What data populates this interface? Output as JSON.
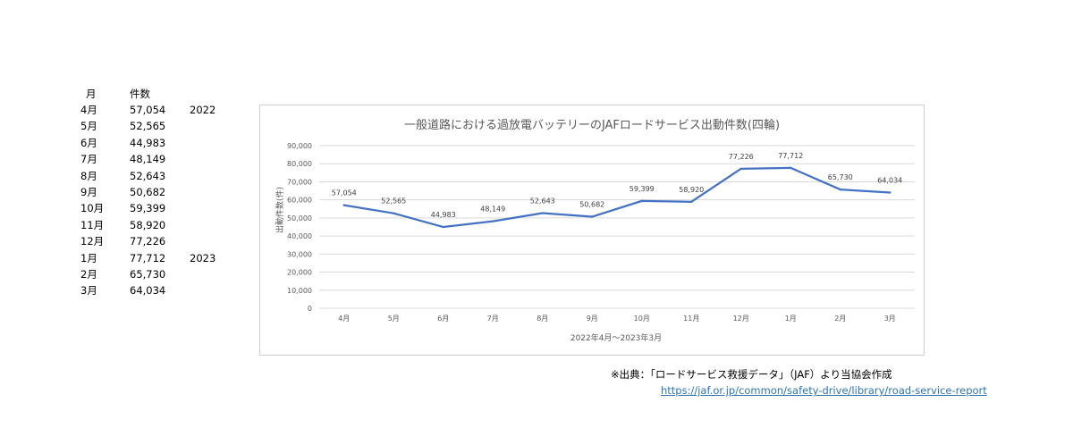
{
  "table": {
    "header": {
      "month": "月",
      "count": "件数"
    },
    "rows": [
      {
        "month": "4月",
        "count": "57,054",
        "year": "2022"
      },
      {
        "month": "5月",
        "count": "52,565",
        "year": ""
      },
      {
        "month": "6月",
        "count": "44,983",
        "year": ""
      },
      {
        "month": "7月",
        "count": "48,149",
        "year": ""
      },
      {
        "month": "8月",
        "count": "52,643",
        "year": ""
      },
      {
        "month": "9月",
        "count": "50,682",
        "year": ""
      },
      {
        "month": "10月",
        "count": "59,399",
        "year": ""
      },
      {
        "month": "11月",
        "count": "58,920",
        "year": ""
      },
      {
        "month": "12月",
        "count": "77,226",
        "year": ""
      },
      {
        "month": "1月",
        "count": "77,712",
        "year": "2023"
      },
      {
        "month": "2月",
        "count": "65,730",
        "year": ""
      },
      {
        "month": "3月",
        "count": "64,034",
        "year": ""
      }
    ]
  },
  "chart_data": {
    "type": "line",
    "title": "一般道路における過放電バッテリーのJAFロードサービス出動件数(四輪)",
    "xlabel": "2022年4月～2023年3月",
    "ylabel": "出動件数(件)",
    "categories": [
      "4月",
      "5月",
      "6月",
      "7月",
      "8月",
      "9月",
      "10月",
      "11月",
      "12月",
      "1月",
      "2月",
      "3月"
    ],
    "series": [
      {
        "values": [
          57054,
          52565,
          44983,
          48149,
          52643,
          50682,
          59399,
          58920,
          77226,
          77712,
          65730,
          64034
        ]
      }
    ],
    "ylim": [
      0,
      90000
    ],
    "y_ticks": [
      0,
      10000,
      20000,
      30000,
      40000,
      50000,
      60000,
      70000,
      80000,
      90000
    ],
    "y_tick_labels": [
      "0",
      "10,000",
      "20,000",
      "30,000",
      "40,000",
      "50,000",
      "60,000",
      "70,000",
      "80,000",
      "90,000"
    ],
    "data_labels": [
      "57,054",
      "52,565",
      "44,983",
      "48,149",
      "52,643",
      "50,682",
      "59,399",
      "58,920",
      "77,226",
      "77,712",
      "65,730",
      "64,034"
    ],
    "grid": true,
    "legend": "none",
    "colors": {
      "line": "#4472c4",
      "grid": "#d9d9d9",
      "text": "#595959"
    }
  },
  "source": {
    "text": "※出典：「ロードサービス救援データ」（JAF）より当協会作成",
    "link": "https://jaf.or.jp/common/safety-drive/library/road-service-report"
  }
}
